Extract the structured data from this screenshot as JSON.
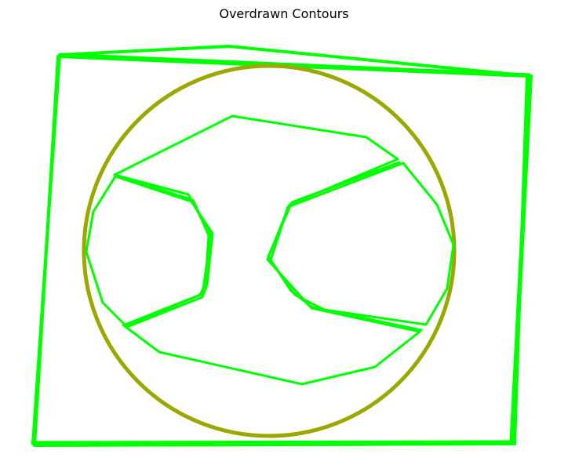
{
  "figure": {
    "title": "Overdrawn Contours"
  },
  "colors": {
    "background": "#ffffff",
    "contour_green": "#00ff00",
    "circle_olive": "#9aa800"
  }
}
